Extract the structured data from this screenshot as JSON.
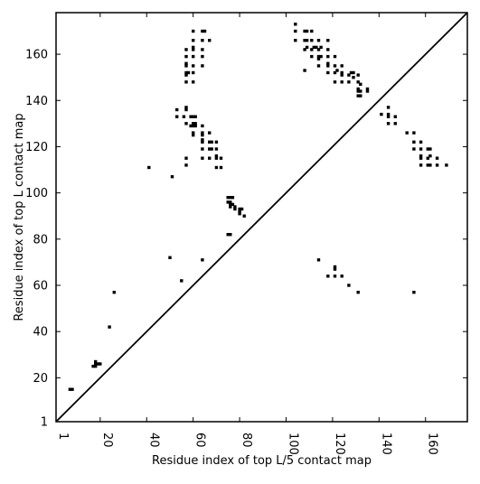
{
  "chart_data": {
    "type": "scatter",
    "xlabel": "Residue index of top L/5 contact map",
    "ylabel": "Residue index of top L contact map",
    "xlim": [
      1,
      178
    ],
    "ylim": [
      1,
      178
    ],
    "xticks": [
      1,
      20,
      40,
      60,
      80,
      100,
      120,
      140,
      160
    ],
    "xtick_labels": [
      "1",
      "20",
      "40",
      "60",
      "80",
      "100",
      "120",
      "140",
      "160"
    ],
    "yticks": [
      1,
      20,
      40,
      60,
      80,
      100,
      120,
      140,
      160
    ],
    "ytick_labels": [
      "1",
      "20",
      "40",
      "60",
      "80",
      "100",
      "120",
      "140",
      "160"
    ],
    "diagonal": true,
    "marker": "square",
    "grid": false,
    "colors": {
      "points": "#000000",
      "frame": "#000000",
      "background": "#ffffff"
    },
    "series": [
      {
        "region": "upper-left (top L contacts)",
        "points": [
          [
            7,
            15
          ],
          [
            8,
            15
          ],
          [
            17,
            25
          ],
          [
            18,
            25
          ],
          [
            18,
            26
          ],
          [
            19,
            26
          ],
          [
            18,
            27
          ],
          [
            20,
            26
          ],
          [
            24,
            42
          ],
          [
            26,
            57
          ],
          [
            41,
            111
          ],
          [
            50,
            72
          ],
          [
            51,
            107
          ],
          [
            53,
            133
          ],
          [
            53,
            136
          ],
          [
            55,
            62
          ],
          [
            56,
            133
          ],
          [
            57,
            112
          ],
          [
            57,
            115
          ],
          [
            57,
            130
          ],
          [
            57,
            136
          ],
          [
            57,
            137
          ],
          [
            57,
            148
          ],
          [
            57,
            151
          ],
          [
            57,
            152
          ],
          [
            57,
            155
          ],
          [
            57,
            156
          ],
          [
            57,
            159
          ],
          [
            57,
            162
          ],
          [
            58,
            152
          ],
          [
            59,
            129
          ],
          [
            59,
            133
          ],
          [
            60,
            125
          ],
          [
            60,
            126
          ],
          [
            60,
            129
          ],
          [
            60,
            130
          ],
          [
            60,
            133
          ],
          [
            60,
            148
          ],
          [
            60,
            152
          ],
          [
            60,
            155
          ],
          [
            60,
            159
          ],
          [
            60,
            162
          ],
          [
            60,
            163
          ],
          [
            60,
            166
          ],
          [
            60,
            170
          ],
          [
            61,
            129
          ],
          [
            61,
            130
          ],
          [
            61,
            133
          ],
          [
            64,
            71
          ],
          [
            64,
            115
          ],
          [
            64,
            119
          ],
          [
            64,
            122
          ],
          [
            64,
            123
          ],
          [
            64,
            125
          ],
          [
            64,
            126
          ],
          [
            64,
            129
          ],
          [
            64,
            155
          ],
          [
            64,
            159
          ],
          [
            64,
            162
          ],
          [
            64,
            166
          ],
          [
            64,
            170
          ],
          [
            65,
            170
          ],
          [
            67,
            115
          ],
          [
            67,
            119
          ],
          [
            67,
            122
          ],
          [
            67,
            126
          ],
          [
            67,
            166
          ],
          [
            68,
            119
          ],
          [
            68,
            122
          ],
          [
            70,
            111
          ],
          [
            70,
            115
          ],
          [
            70,
            116
          ],
          [
            70,
            119
          ],
          [
            70,
            122
          ],
          [
            72,
            111
          ],
          [
            72,
            115
          ],
          [
            75,
            82
          ],
          [
            76,
            82
          ],
          [
            75,
            96
          ],
          [
            75,
            98
          ],
          [
            76,
            94
          ],
          [
            76,
            95
          ],
          [
            76,
            96
          ],
          [
            76,
            98
          ],
          [
            77,
            95
          ],
          [
            77,
            98
          ],
          [
            78,
            93
          ],
          [
            78,
            94
          ],
          [
            80,
            91
          ],
          [
            80,
            92
          ],
          [
            80,
            93
          ],
          [
            81,
            93
          ],
          [
            82,
            90
          ]
        ]
      },
      {
        "region": "lower-right (top L/5 contacts)",
        "points": [
          [
            104,
            166
          ],
          [
            104,
            170
          ],
          [
            104,
            173
          ],
          [
            108,
            153
          ],
          [
            108,
            162
          ],
          [
            108,
            166
          ],
          [
            108,
            170
          ],
          [
            109,
            163
          ],
          [
            109,
            166
          ],
          [
            109,
            170
          ],
          [
            111,
            159
          ],
          [
            111,
            162
          ],
          [
            111,
            166
          ],
          [
            111,
            170
          ],
          [
            112,
            163
          ],
          [
            113,
            163
          ],
          [
            114,
            71
          ],
          [
            114,
            155
          ],
          [
            114,
            158
          ],
          [
            114,
            159
          ],
          [
            114,
            162
          ],
          [
            114,
            166
          ],
          [
            115,
            159
          ],
          [
            115,
            163
          ],
          [
            118,
            64
          ],
          [
            118,
            152
          ],
          [
            118,
            155
          ],
          [
            118,
            156
          ],
          [
            118,
            159
          ],
          [
            118,
            162
          ],
          [
            118,
            166
          ],
          [
            121,
            64
          ],
          [
            121,
            67
          ],
          [
            121,
            68
          ],
          [
            121,
            148
          ],
          [
            121,
            152
          ],
          [
            121,
            155
          ],
          [
            121,
            159
          ],
          [
            122,
            153
          ],
          [
            124,
            64
          ],
          [
            124,
            148
          ],
          [
            124,
            151
          ],
          [
            124,
            152
          ],
          [
            124,
            155
          ],
          [
            127,
            60
          ],
          [
            127,
            148
          ],
          [
            127,
            151
          ],
          [
            128,
            152
          ],
          [
            129,
            150
          ],
          [
            129,
            152
          ],
          [
            131,
            57
          ],
          [
            131,
            142
          ],
          [
            131,
            144
          ],
          [
            131,
            145
          ],
          [
            131,
            148
          ],
          [
            131,
            151
          ],
          [
            132,
            142
          ],
          [
            132,
            144
          ],
          [
            132,
            147
          ],
          [
            135,
            144
          ],
          [
            135,
            145
          ],
          [
            141,
            134
          ],
          [
            144,
            130
          ],
          [
            144,
            133
          ],
          [
            144,
            134
          ],
          [
            144,
            137
          ],
          [
            147,
            130
          ],
          [
            147,
            133
          ],
          [
            152,
            126
          ],
          [
            155,
            57
          ],
          [
            155,
            119
          ],
          [
            155,
            122
          ],
          [
            155,
            126
          ],
          [
            158,
            112
          ],
          [
            158,
            115
          ],
          [
            158,
            116
          ],
          [
            158,
            119
          ],
          [
            158,
            122
          ],
          [
            161,
            112
          ],
          [
            161,
            115
          ],
          [
            161,
            119
          ],
          [
            162,
            112
          ],
          [
            162,
            116
          ],
          [
            162,
            119
          ],
          [
            165,
            112
          ],
          [
            165,
            115
          ],
          [
            169,
            112
          ]
        ]
      }
    ]
  }
}
